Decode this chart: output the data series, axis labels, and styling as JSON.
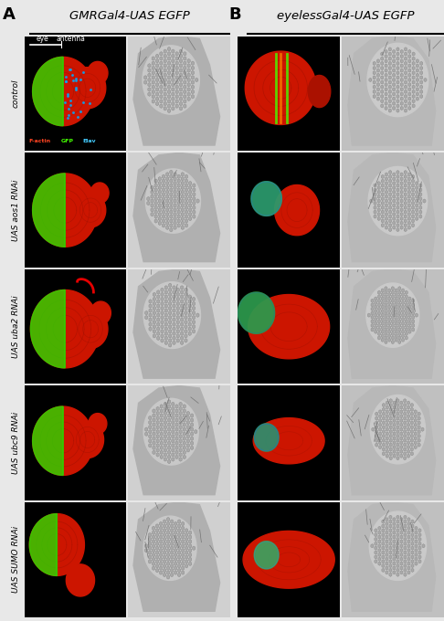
{
  "panel_A_title": "GMRGal4-UAS EGFP",
  "panel_B_title": "eyelessGal4-UAS EGFP",
  "row_labels": [
    "control",
    "UAS aos1 RNAi",
    "UAS uba2 RNAi",
    "UAS ubc9 RNAi",
    "UAS SUMO RNAi"
  ],
  "background": "#e8e8e8",
  "figure_width": 4.86,
  "figure_height": 6.8,
  "n_rows": 5
}
